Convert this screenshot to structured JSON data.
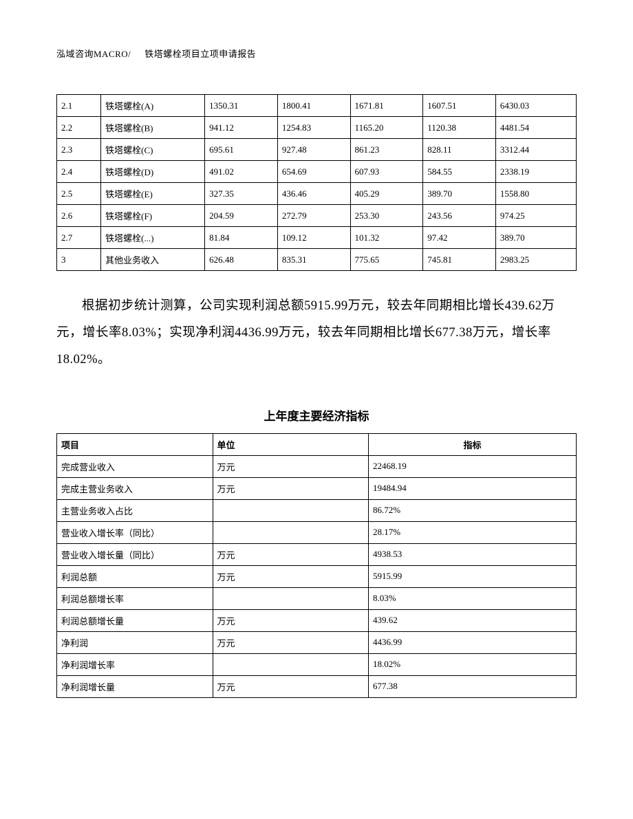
{
  "header": {
    "left": "泓域咨询MACRO/",
    "right": "铁塔螺栓项目立项申请报告"
  },
  "table1": {
    "rows": [
      [
        "2.1",
        "铁塔螺栓(A)",
        "1350.31",
        "1800.41",
        "1671.81",
        "1607.51",
        "6430.03"
      ],
      [
        "2.2",
        "铁塔螺栓(B)",
        "941.12",
        "1254.83",
        "1165.20",
        "1120.38",
        "4481.54"
      ],
      [
        "2.3",
        "铁塔螺栓(C)",
        "695.61",
        "927.48",
        "861.23",
        "828.11",
        "3312.44"
      ],
      [
        "2.4",
        "铁塔螺栓(D)",
        "491.02",
        "654.69",
        "607.93",
        "584.55",
        "2338.19"
      ],
      [
        "2.5",
        "铁塔螺栓(E)",
        "327.35",
        "436.46",
        "405.29",
        "389.70",
        "1558.80"
      ],
      [
        "2.6",
        "铁塔螺栓(F)",
        "204.59",
        "272.79",
        "253.30",
        "243.56",
        "974.25"
      ],
      [
        "2.7",
        "铁塔螺栓(...)",
        "81.84",
        "109.12",
        "101.32",
        "97.42",
        "389.70"
      ],
      [
        "3",
        "其他业务收入",
        "626.48",
        "835.31",
        "775.65",
        "745.81",
        "2983.25"
      ]
    ]
  },
  "paragraph": "根据初步统计测算，公司实现利润总额5915.99万元，较去年同期相比增长439.62万元，增长率8.03%；实现净利润4436.99万元，较去年同期相比增长677.38万元，增长率18.02%。",
  "table2": {
    "title": "上年度主要经济指标",
    "headers": [
      "项目",
      "单位",
      "指标"
    ],
    "rows": [
      [
        "完成营业收入",
        "万元",
        "22468.19"
      ],
      [
        "完成主营业务收入",
        "万元",
        "19484.94"
      ],
      [
        "主营业务收入占比",
        "",
        "86.72%"
      ],
      [
        "营业收入增长率（同比）",
        "",
        "28.17%"
      ],
      [
        "营业收入增长量（同比）",
        "万元",
        "4938.53"
      ],
      [
        "利润总额",
        "万元",
        "5915.99"
      ],
      [
        "利润总额增长率",
        "",
        "8.03%"
      ],
      [
        "利润总额增长量",
        "万元",
        "439.62"
      ],
      [
        "净利润",
        "万元",
        "4436.99"
      ],
      [
        "净利润增长率",
        "",
        "18.02%"
      ],
      [
        "净利润增长量",
        "万元",
        "677.38"
      ]
    ]
  }
}
